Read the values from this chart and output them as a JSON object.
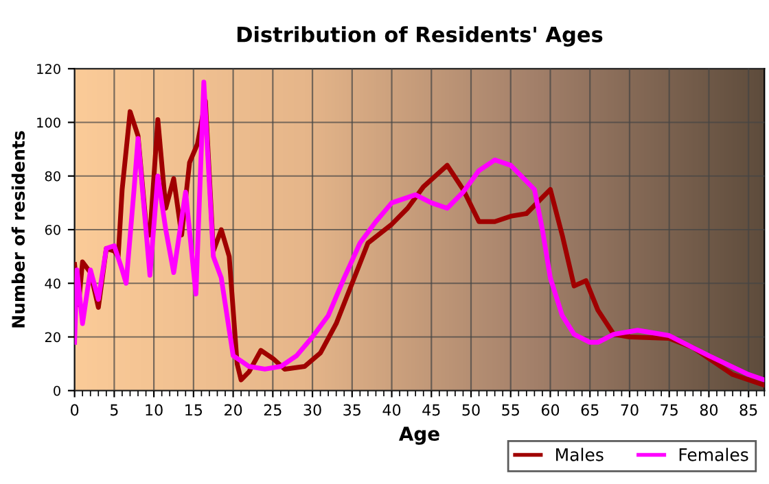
{
  "chart_data": {
    "type": "line",
    "title": "Distribution of Residents' Ages",
    "xlabel": "Age",
    "ylabel": "Number of residents",
    "xlim": [
      0,
      87
    ],
    "ylim": [
      0,
      120
    ],
    "xticks": [
      0,
      5,
      10,
      15,
      20,
      25,
      30,
      35,
      40,
      45,
      50,
      55,
      60,
      65,
      70,
      75,
      80,
      85
    ],
    "yticks": [
      0,
      20,
      40,
      60,
      80,
      100,
      120
    ],
    "grid": true,
    "legend": "bottom right",
    "marker": "none",
    "line_style": "solid",
    "series": [
      {
        "name": "Males",
        "color": "#a00000",
        "x": [
          0,
          0.5,
          1,
          2,
          3,
          4,
          5,
          5.5,
          6,
          7,
          8,
          9,
          9.5,
          10.5,
          11.5,
          12.5,
          13.5,
          14.5,
          15.5,
          16.5,
          17.5,
          18.5,
          19.5,
          20.5,
          21,
          22,
          23.5,
          25,
          26.5,
          29,
          31,
          33,
          35,
          37,
          40,
          42,
          44,
          47,
          49,
          51,
          53,
          55,
          57,
          59,
          60,
          61.5,
          63,
          64.5,
          66,
          68,
          70,
          75,
          78,
          80,
          83,
          87
        ],
        "values": [
          47,
          32,
          48,
          44,
          31,
          53,
          52,
          50,
          75,
          104,
          95,
          62,
          58,
          101,
          68,
          79,
          58,
          85,
          92,
          108,
          52,
          60,
          50,
          10,
          4,
          7,
          15,
          12,
          8,
          9,
          14,
          25,
          40,
          55,
          62,
          68,
          76,
          84,
          75,
          63,
          63,
          65,
          66,
          72,
          75,
          58,
          39,
          41,
          30,
          21,
          20,
          19.5,
          16,
          12,
          6,
          2
        ]
      },
      {
        "name": "Females",
        "color": "#ff00ff",
        "x": [
          0,
          0.3,
          1,
          2,
          3,
          4,
          5,
          6,
          6.5,
          7.5,
          8,
          9,
          9.5,
          10.5,
          11.5,
          12.5,
          14,
          15.3,
          16.3,
          17.5,
          18.5,
          20,
          21,
          22,
          24,
          26,
          28,
          30,
          32,
          34,
          36,
          38,
          40,
          43,
          45,
          47,
          49,
          51,
          53,
          55,
          57,
          58,
          59,
          60,
          61.5,
          63,
          65,
          66,
          68,
          71,
          75,
          80,
          85,
          87
        ],
        "values": [
          18,
          45,
          25,
          45,
          34,
          53,
          54,
          45,
          40,
          75,
          94,
          60,
          43,
          80,
          60,
          44,
          74,
          36,
          115,
          50,
          42,
          13,
          11,
          9,
          8,
          9,
          13,
          20,
          28,
          42,
          55,
          63,
          70,
          73,
          70,
          68,
          74,
          82,
          86,
          84,
          78,
          75,
          60,
          42,
          28,
          21,
          18,
          18,
          21,
          22.5,
          20.5,
          13,
          6,
          4
        ]
      }
    ]
  }
}
